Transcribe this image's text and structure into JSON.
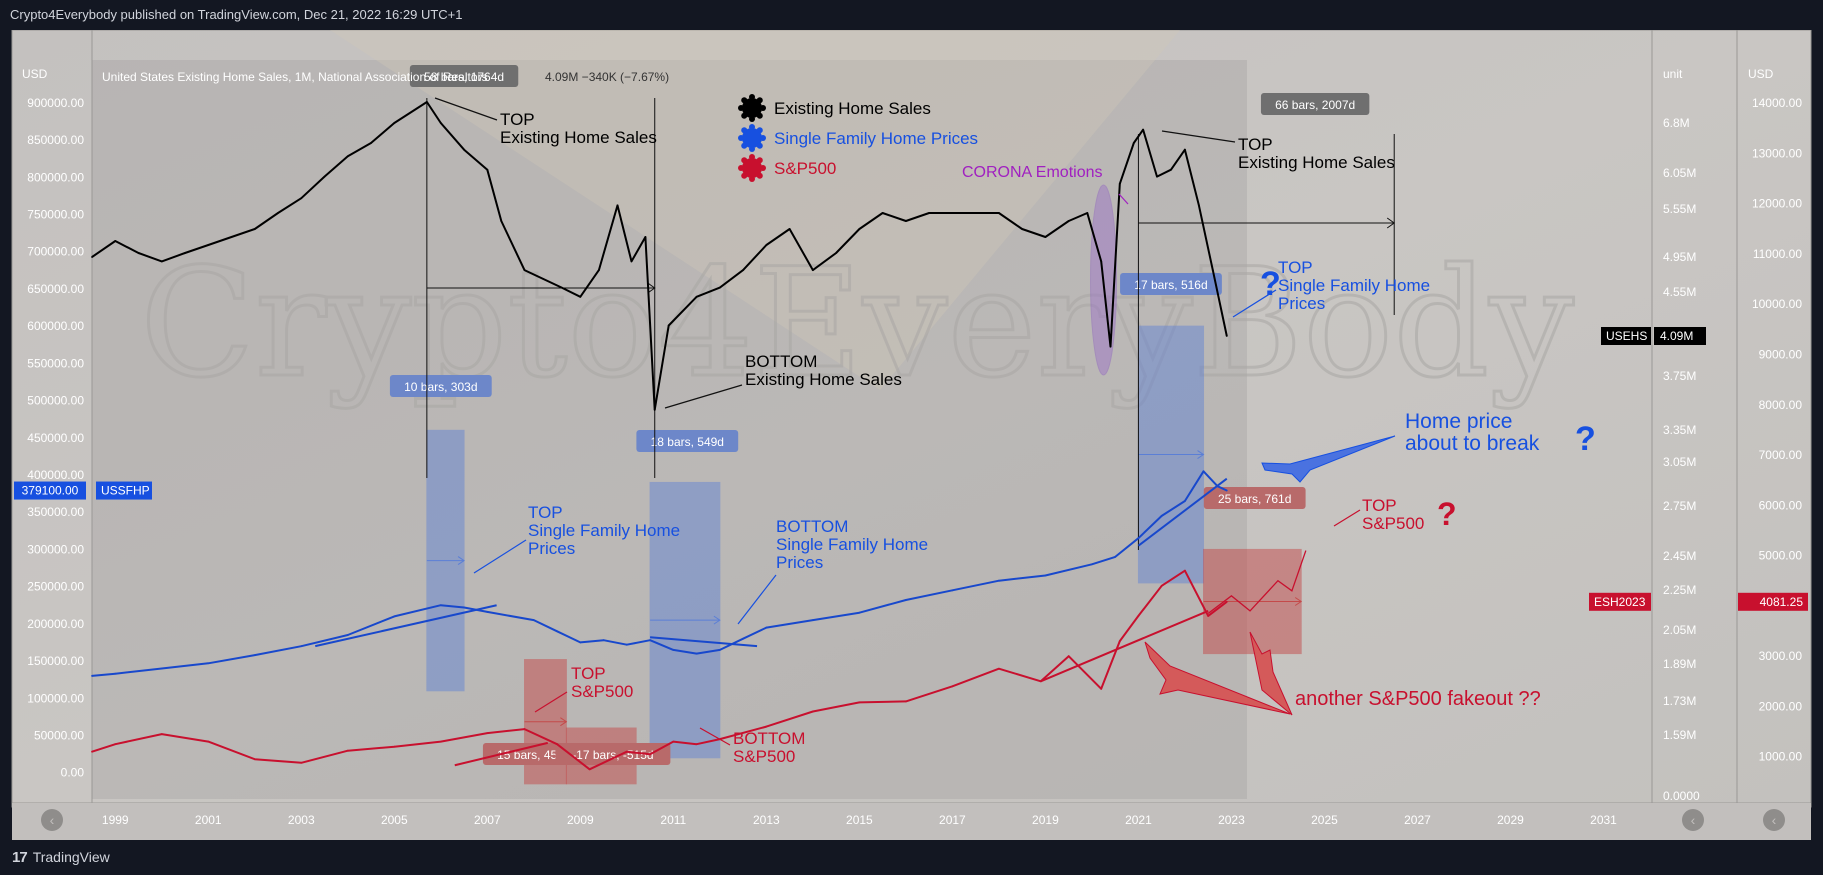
{
  "header": {
    "publisher_line": "Crypto4Everybody published on TradingView.com, Dec 21, 2022 16:29 UTC+1"
  },
  "footer": {
    "brand": "TradingView",
    "logo_glyph": "17"
  },
  "chart_data": {
    "type": "line",
    "title": "United States Existing Home Sales, 1M, National Association of Realtors",
    "title_overlap": "4.09M −340K (−7.67%)",
    "x_axis": {
      "ticks": [
        "1999",
        "2001",
        "2003",
        "2005",
        "2007",
        "2009",
        "2011",
        "2013",
        "2015",
        "2017",
        "2019",
        "2021",
        "2023",
        "2025",
        "2027",
        "2029",
        "2031"
      ],
      "range": [
        1998.5,
        2032
      ]
    },
    "left_axis": {
      "unit": "USD",
      "range": [
        -30000,
        920000
      ],
      "ticks": [
        "0.00",
        "50000.00",
        "100000.00",
        "150000.00",
        "200000.00",
        "250000.00",
        "300000.00",
        "350000.00",
        "400000.00",
        "450000.00",
        "500000.00",
        "550000.00",
        "600000.00",
        "650000.00",
        "700000.00",
        "750000.00",
        "800000.00",
        "850000.00",
        "900000.00"
      ]
    },
    "mid_axis": {
      "unit": "unit",
      "ticks": [
        "0.0000",
        "1.59M",
        "1.73M",
        "1.89M",
        "2.05M",
        "2.25M",
        "2.45M",
        "2.75M",
        "3.05M",
        "3.35M",
        "3.75M",
        "4.09M",
        "4.55M",
        "4.95M",
        "5.55M",
        "6.05M",
        "6.8M"
      ]
    },
    "right_axis": {
      "unit": "USD",
      "range": [
        0,
        14300
      ],
      "ticks": [
        "1000.00",
        "2000.00",
        "3000.00",
        "4000.00",
        "5000.00",
        "6000.00",
        "7000.00",
        "8000.00",
        "9000.00",
        "10000.00",
        "11000.00",
        "12000.00",
        "13000.00",
        "14000.00"
      ]
    },
    "series": [
      {
        "name": "Existing Home Sales",
        "axis": "mid",
        "color": "#000000",
        "points": [
          [
            1998.5,
            4.95
          ],
          [
            1999.0,
            5.15
          ],
          [
            1999.5,
            5.0
          ],
          [
            2000.0,
            4.9
          ],
          [
            2000.5,
            5.0
          ],
          [
            2001.0,
            5.1
          ],
          [
            2001.5,
            5.2
          ],
          [
            2002.0,
            5.3
          ],
          [
            2002.5,
            5.5
          ],
          [
            2003.0,
            5.7
          ],
          [
            2003.5,
            6.0
          ],
          [
            2004.0,
            6.3
          ],
          [
            2004.5,
            6.5
          ],
          [
            2005.0,
            6.8
          ],
          [
            2005.7,
            7.1
          ],
          [
            2006.0,
            6.8
          ],
          [
            2006.5,
            6.4
          ],
          [
            2007.0,
            6.1
          ],
          [
            2007.3,
            5.4
          ],
          [
            2007.8,
            4.8
          ],
          [
            2008.2,
            4.7
          ],
          [
            2008.6,
            4.6
          ],
          [
            2009.0,
            4.5
          ],
          [
            2009.4,
            4.8
          ],
          [
            2009.8,
            5.6
          ],
          [
            2010.1,
            4.9
          ],
          [
            2010.4,
            5.2
          ],
          [
            2010.6,
            3.5
          ],
          [
            2010.9,
            4.2
          ],
          [
            2011.5,
            4.5
          ],
          [
            2012.0,
            4.6
          ],
          [
            2012.5,
            4.8
          ],
          [
            2013.0,
            5.1
          ],
          [
            2013.5,
            5.3
          ],
          [
            2014.0,
            4.8
          ],
          [
            2014.5,
            5.0
          ],
          [
            2015.0,
            5.3
          ],
          [
            2015.5,
            5.5
          ],
          [
            2016.0,
            5.4
          ],
          [
            2016.5,
            5.5
          ],
          [
            2017.0,
            5.5
          ],
          [
            2017.5,
            5.5
          ],
          [
            2018.0,
            5.5
          ],
          [
            2018.5,
            5.3
          ],
          [
            2019.0,
            5.2
          ],
          [
            2019.5,
            5.4
          ],
          [
            2019.9,
            5.5
          ],
          [
            2020.2,
            4.9
          ],
          [
            2020.4,
            4.0
          ],
          [
            2020.6,
            5.9
          ],
          [
            2020.9,
            6.5
          ],
          [
            2021.1,
            6.7
          ],
          [
            2021.4,
            6.0
          ],
          [
            2021.7,
            6.1
          ],
          [
            2022.0,
            6.4
          ],
          [
            2022.3,
            5.6
          ],
          [
            2022.6,
            4.8
          ],
          [
            2022.9,
            4.09
          ]
        ]
      },
      {
        "name": "Single Family Home Prices",
        "axis": "left",
        "color": "#1848cc",
        "points": [
          [
            1998.5,
            130000
          ],
          [
            1999.0,
            133000
          ],
          [
            2000.0,
            140000
          ],
          [
            2001.0,
            147000
          ],
          [
            2002.0,
            158000
          ],
          [
            2003.0,
            170000
          ],
          [
            2004.0,
            185000
          ],
          [
            2005.0,
            210000
          ],
          [
            2006.0,
            225000
          ],
          [
            2006.5,
            222000
          ],
          [
            2007.0,
            216000
          ],
          [
            2008.0,
            205000
          ],
          [
            2008.5,
            190000
          ],
          [
            2009.0,
            175000
          ],
          [
            2009.5,
            178000
          ],
          [
            2010.0,
            172000
          ],
          [
            2010.5,
            178000
          ],
          [
            2011.0,
            165000
          ],
          [
            2011.5,
            160000
          ],
          [
            2012.0,
            165000
          ],
          [
            2012.5,
            180000
          ],
          [
            2013.0,
            195000
          ],
          [
            2014.0,
            205000
          ],
          [
            2015.0,
            215000
          ],
          [
            2016.0,
            232000
          ],
          [
            2017.0,
            245000
          ],
          [
            2018.0,
            258000
          ],
          [
            2019.0,
            265000
          ],
          [
            2020.0,
            280000
          ],
          [
            2020.5,
            290000
          ],
          [
            2021.0,
            315000
          ],
          [
            2021.5,
            345000
          ],
          [
            2022.0,
            365000
          ],
          [
            2022.4,
            405000
          ],
          [
            2022.7,
            385000
          ],
          [
            2022.9,
            379100
          ]
        ]
      },
      {
        "name": "S&P500",
        "axis": "right",
        "color": "#c8102e",
        "points": [
          [
            1998.5,
            1100
          ],
          [
            1999.0,
            1250
          ],
          [
            2000.0,
            1450
          ],
          [
            2001.0,
            1300
          ],
          [
            2002.0,
            950
          ],
          [
            2003.0,
            880
          ],
          [
            2004.0,
            1120
          ],
          [
            2005.0,
            1200
          ],
          [
            2006.0,
            1300
          ],
          [
            2007.0,
            1470
          ],
          [
            2007.8,
            1550
          ],
          [
            2008.5,
            1250
          ],
          [
            2009.2,
            750
          ],
          [
            2010.0,
            1100
          ],
          [
            2010.5,
            1050
          ],
          [
            2011.0,
            1300
          ],
          [
            2011.5,
            1250
          ],
          [
            2012.0,
            1350
          ],
          [
            2013.0,
            1600
          ],
          [
            2014.0,
            1900
          ],
          [
            2015.0,
            2080
          ],
          [
            2016.0,
            2100
          ],
          [
            2017.0,
            2400
          ],
          [
            2018.0,
            2750
          ],
          [
            2018.9,
            2500
          ],
          [
            2019.5,
            3000
          ],
          [
            2020.2,
            2350
          ],
          [
            2020.6,
            3300
          ],
          [
            2021.0,
            3800
          ],
          [
            2021.5,
            4400
          ],
          [
            2022.0,
            4700
          ],
          [
            2022.5,
            3800
          ],
          [
            2022.9,
            4081
          ]
        ]
      }
    ],
    "price_labels": [
      {
        "axis": "left",
        "value": 379100,
        "text": "379100.00",
        "tag": "USSFHP",
        "color": "#1750e0"
      },
      {
        "axis": "mid",
        "value": 4.09,
        "text": "4.09M",
        "tag": "USEHS",
        "color": "#000000"
      },
      {
        "axis": "right",
        "value": 4081.25,
        "text": "4081.25",
        "tag": "ESH2023",
        "color": "#c8102e"
      }
    ],
    "legend": [
      {
        "label": "Existing Home Sales",
        "color": "#000000"
      },
      {
        "label": "Single Family Home Prices",
        "color": "#1750e0"
      },
      {
        "label": "S&P500",
        "color": "#c8102e"
      }
    ],
    "range_boxes": [
      {
        "label": "58 bars, 1764d",
        "kind": "black"
      },
      {
        "label": "66 bars, 2007d",
        "kind": "black"
      },
      {
        "label": "10 bars, 303d",
        "kind": "blue"
      },
      {
        "label": "18 bars, 549d",
        "kind": "blue"
      },
      {
        "label": "17 bars, 516d",
        "kind": "blue"
      },
      {
        "label": "15 bars, 457d",
        "kind": "red"
      },
      {
        "label": "-17 bars, -515d",
        "kind": "red"
      },
      {
        "label": "25 bars, 761d",
        "kind": "red"
      }
    ],
    "annotations": [
      {
        "lines": [
          "TOP",
          "Existing Home Sales"
        ],
        "color": "#000000"
      },
      {
        "lines": [
          "TOP",
          "Existing Home Sales"
        ],
        "color": "#000000"
      },
      {
        "lines": [
          "BOTTOM",
          "Existing Home Sales"
        ],
        "color": "#000000"
      },
      {
        "lines": [
          "CORONA Emotions"
        ],
        "color": "#a020c0"
      },
      {
        "lines": [
          "TOP",
          "Single Family Home",
          "Prices"
        ],
        "color": "#1750e0"
      },
      {
        "lines": [
          "TOP",
          "Single Family Home",
          "Prices"
        ],
        "color": "#1750e0"
      },
      {
        "lines": [
          "BOTTOM",
          "Single Family Home",
          "Prices"
        ],
        "color": "#1750e0"
      },
      {
        "lines": [
          "Home price",
          "about to break"
        ],
        "color": "#1750e0"
      },
      {
        "lines": [
          "TOP",
          "S&P500"
        ],
        "color": "#c8102e"
      },
      {
        "lines": [
          "TOP",
          "S&P500"
        ],
        "color": "#c8102e"
      },
      {
        "lines": [
          "BOTTOM",
          "S&P500"
        ],
        "color": "#c8102e"
      },
      {
        "lines": [
          "another S&P500 fakeout ??"
        ],
        "color": "#c8102e"
      }
    ],
    "question_marks": [
      {
        "text": "?",
        "color": "#1750e0"
      },
      {
        "text": "?",
        "color": "#1750e0"
      },
      {
        "text": "?",
        "color": "#c8102e"
      }
    ],
    "watermark": "Crypto4EveryBody",
    "grid": false,
    "legend_position": "top-center"
  }
}
